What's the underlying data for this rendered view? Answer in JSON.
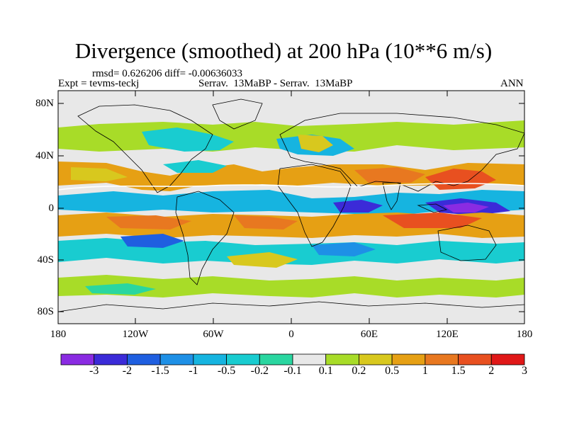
{
  "title": "Divergence (smoothed) at 200 hPa (10**6 m/s)",
  "stats": "rmsd= 0.626206 diff= -0.00636033",
  "left_label": "Expt = tevms-teckj",
  "center_label": "Serrav.  13MaBP - Serrav.  13MaBP",
  "right_label": "ANN",
  "lat_ticks": [
    "80N",
    "40N",
    "0",
    "40S",
    "80S"
  ],
  "lon_ticks": [
    "180",
    "120W",
    "60W",
    "0",
    "60E",
    "120E",
    "180"
  ],
  "colorbar": {
    "labels": [
      "-3",
      "-2",
      "-1.5",
      "-1",
      "-0.5",
      "-0.2",
      "-0.1",
      "0.1",
      "0.2",
      "0.5",
      "1",
      "1.5",
      "2",
      "3"
    ],
    "colors": [
      "#8a2be2",
      "#3b2bd8",
      "#1f5fe0",
      "#1e90e6",
      "#16b4e0",
      "#19ccd0",
      "#2ad6a0",
      "#e8e8e8",
      "#a8dc28",
      "#d8c81e",
      "#e6a014",
      "#e87820",
      "#e85020",
      "#e01818"
    ]
  },
  "map_background": "#e8e8e8"
}
